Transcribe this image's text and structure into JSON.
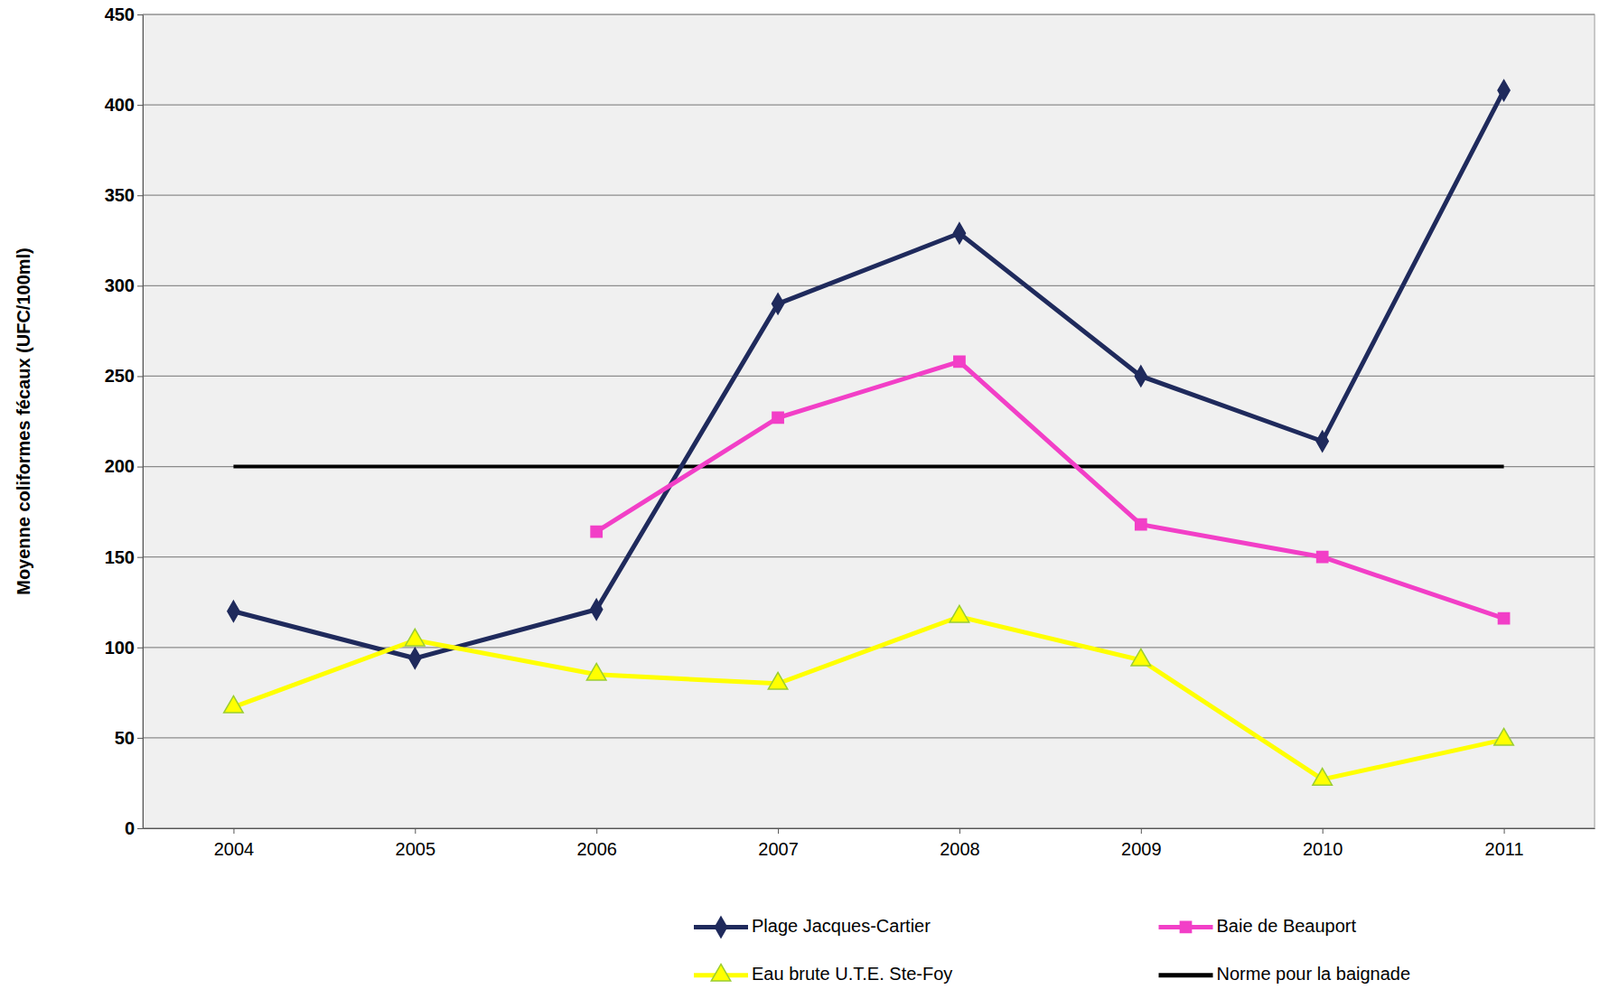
{
  "chart_data": {
    "type": "line",
    "y_label": "Moyenne coliformes fécaux (UFC/100ml)",
    "categories": [
      "2004",
      "2005",
      "2006",
      "2007",
      "2008",
      "2009",
      "2010",
      "2011"
    ],
    "series": [
      {
        "name": "Plage Jacques-Cartier",
        "color": "#1f2a5c",
        "marker": "diamond",
        "line_style": "solid",
        "values": [
          120,
          94,
          121,
          290,
          329,
          250,
          214,
          408
        ]
      },
      {
        "name": "Baie de Beauport",
        "color": "#f23fc7",
        "marker": "square",
        "line_style": "solid",
        "values": [
          null,
          null,
          164,
          227,
          258,
          168,
          150,
          116
        ]
      },
      {
        "name": "Eau brute U.T.E. Ste-Foy",
        "color": "#ffff00",
        "marker": "triangle",
        "line_style": "solid",
        "values": [
          67,
          104,
          85,
          80,
          117,
          93,
          27,
          49
        ]
      },
      {
        "name": "Norme pour la baignade",
        "color": "#000000",
        "marker": "none",
        "line_style": "solid",
        "values": [
          200,
          200,
          200,
          200,
          200,
          200,
          200,
          200
        ]
      }
    ],
    "ylim": [
      0,
      450
    ],
    "yticks": [
      0,
      50,
      100,
      150,
      200,
      250,
      300,
      350,
      400,
      450
    ],
    "grid": true,
    "legend": "bottom-right"
  }
}
